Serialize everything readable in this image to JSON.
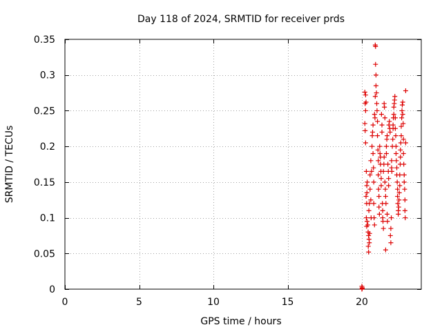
{
  "chart_data": {
    "type": "scatter",
    "title": "Day 118 of 2024, SRMTID for receiver prds",
    "xlabel": "GPS time / hours",
    "ylabel": "SRMTID / TECUs",
    "xlim": [
      0,
      24
    ],
    "ylim": [
      0,
      0.35
    ],
    "x_ticks": [
      0,
      5,
      10,
      15,
      20
    ],
    "x_tick_labels": [
      "0",
      "5",
      "10",
      "15",
      "20"
    ],
    "y_ticks": [
      0,
      0.05,
      0.1,
      0.15,
      0.2,
      0.25,
      0.3,
      0.35
    ],
    "y_tick_labels": [
      "0",
      "0.05",
      "0.1",
      "0.15",
      "0.2",
      "0.25",
      "0.3",
      "0.35"
    ],
    "grid": true,
    "marker": "+",
    "marker_color": "#dd0000",
    "series": [
      {
        "name": "prds",
        "x_range_hours": [
          20.0,
          22.95
        ],
        "y_range": [
          0.0,
          0.342
        ],
        "points": [
          [
            20.0,
            0.0
          ],
          [
            20.02,
            0.002
          ],
          [
            20.0,
            0.004
          ],
          [
            20.02,
            0.001
          ],
          [
            20.2,
            0.276
          ],
          [
            20.22,
            0.26
          ],
          [
            20.25,
            0.25
          ],
          [
            20.25,
            0.272
          ],
          [
            20.28,
            0.262
          ],
          [
            20.2,
            0.232
          ],
          [
            20.22,
            0.222
          ],
          [
            20.25,
            0.205
          ],
          [
            20.3,
            0.165
          ],
          [
            20.32,
            0.12
          ],
          [
            20.28,
            0.13
          ],
          [
            20.3,
            0.1
          ],
          [
            20.32,
            0.088
          ],
          [
            20.35,
            0.095
          ],
          [
            20.33,
            0.145
          ],
          [
            20.34,
            0.135
          ],
          [
            20.36,
            0.15
          ],
          [
            20.4,
            0.09
          ],
          [
            20.42,
            0.08
          ],
          [
            20.45,
            0.075
          ],
          [
            20.43,
            0.06
          ],
          [
            20.45,
            0.052
          ],
          [
            20.48,
            0.07
          ],
          [
            20.5,
            0.065
          ],
          [
            20.52,
            0.078
          ],
          [
            20.47,
            0.11
          ],
          [
            20.5,
            0.12
          ],
          [
            20.55,
            0.14
          ],
          [
            20.55,
            0.16
          ],
          [
            20.6,
            0.18
          ],
          [
            20.6,
            0.125
          ],
          [
            20.62,
            0.1
          ],
          [
            20.65,
            0.165
          ],
          [
            20.68,
            0.2
          ],
          [
            20.7,
            0.215
          ],
          [
            20.72,
            0.22
          ],
          [
            20.75,
            0.23
          ],
          [
            20.75,
            0.19
          ],
          [
            20.78,
            0.17
          ],
          [
            20.8,
            0.15
          ],
          [
            20.8,
            0.12
          ],
          [
            20.82,
            0.1
          ],
          [
            20.85,
            0.09
          ],
          [
            20.85,
            0.245
          ],
          [
            20.88,
            0.24
          ],
          [
            20.9,
            0.342
          ],
          [
            20.92,
            0.34
          ],
          [
            20.92,
            0.315
          ],
          [
            20.95,
            0.3
          ],
          [
            20.95,
            0.285
          ],
          [
            20.98,
            0.275
          ],
          [
            20.9,
            0.27
          ],
          [
            21.0,
            0.26
          ],
          [
            21.02,
            0.25
          ],
          [
            21.05,
            0.235
          ],
          [
            21.05,
            0.215
          ],
          [
            21.08,
            0.195
          ],
          [
            21.1,
            0.18
          ],
          [
            21.1,
            0.16
          ],
          [
            21.12,
            0.14
          ],
          [
            21.15,
            0.13
          ],
          [
            21.15,
            0.115
          ],
          [
            21.18,
            0.105
          ],
          [
            21.2,
            0.2
          ],
          [
            21.22,
            0.19
          ],
          [
            21.25,
            0.185
          ],
          [
            21.25,
            0.175
          ],
          [
            21.28,
            0.165
          ],
          [
            21.3,
            0.155
          ],
          [
            21.3,
            0.145
          ],
          [
            21.32,
            0.245
          ],
          [
            21.35,
            0.23
          ],
          [
            21.35,
            0.22
          ],
          [
            21.38,
            0.12
          ],
          [
            21.4,
            0.11
          ],
          [
            21.4,
            0.1
          ],
          [
            21.42,
            0.095
          ],
          [
            21.45,
            0.085
          ],
          [
            21.45,
            0.165
          ],
          [
            21.48,
            0.175
          ],
          [
            21.5,
            0.185
          ],
          [
            21.5,
            0.26
          ],
          [
            21.52,
            0.255
          ],
          [
            21.55,
            0.24
          ],
          [
            21.55,
            0.15
          ],
          [
            21.58,
            0.14
          ],
          [
            21.6,
            0.13
          ],
          [
            21.6,
            0.055
          ],
          [
            21.62,
            0.12
          ],
          [
            21.65,
            0.19
          ],
          [
            21.65,
            0.2
          ],
          [
            21.68,
            0.21
          ],
          [
            21.7,
            0.215
          ],
          [
            21.7,
            0.105
          ],
          [
            21.72,
            0.095
          ],
          [
            21.75,
            0.175
          ],
          [
            21.78,
            0.165
          ],
          [
            21.8,
            0.155
          ],
          [
            21.8,
            0.145
          ],
          [
            21.82,
            0.23
          ],
          [
            21.85,
            0.235
          ],
          [
            21.88,
            0.225
          ],
          [
            21.9,
            0.22
          ],
          [
            21.92,
            0.075
          ],
          [
            21.95,
            0.065
          ],
          [
            21.95,
            0.085
          ],
          [
            21.98,
            0.1
          ],
          [
            22.0,
            0.18
          ],
          [
            22.0,
            0.17
          ],
          [
            22.02,
            0.165
          ],
          [
            22.05,
            0.2
          ],
          [
            22.08,
            0.21
          ],
          [
            22.1,
            0.225
          ],
          [
            22.1,
            0.23
          ],
          [
            22.12,
            0.24
          ],
          [
            22.15,
            0.245
          ],
          [
            22.15,
            0.255
          ],
          [
            22.18,
            0.26
          ],
          [
            22.2,
            0.265
          ],
          [
            22.22,
            0.27
          ],
          [
            22.25,
            0.24
          ],
          [
            22.25,
            0.225
          ],
          [
            22.28,
            0.215
          ],
          [
            22.3,
            0.2
          ],
          [
            22.3,
            0.19
          ],
          [
            22.32,
            0.18
          ],
          [
            22.35,
            0.17
          ],
          [
            22.35,
            0.16
          ],
          [
            22.38,
            0.15
          ],
          [
            22.4,
            0.14
          ],
          [
            22.4,
            0.13
          ],
          [
            22.42,
            0.12
          ],
          [
            22.45,
            0.11
          ],
          [
            22.45,
            0.105
          ],
          [
            22.48,
            0.115
          ],
          [
            22.5,
            0.125
          ],
          [
            22.52,
            0.135
          ],
          [
            22.55,
            0.145
          ],
          [
            22.55,
            0.16
          ],
          [
            22.58,
            0.175
          ],
          [
            22.6,
            0.185
          ],
          [
            22.6,
            0.195
          ],
          [
            22.62,
            0.205
          ],
          [
            22.65,
            0.215
          ],
          [
            22.65,
            0.228
          ],
          [
            22.68,
            0.24
          ],
          [
            22.7,
            0.25
          ],
          [
            22.72,
            0.258
          ],
          [
            22.75,
            0.262
          ],
          [
            22.75,
            0.245
          ],
          [
            22.78,
            0.232
          ],
          [
            22.8,
            0.21
          ],
          [
            22.8,
            0.19
          ],
          [
            22.82,
            0.175
          ],
          [
            22.85,
            0.16
          ],
          [
            22.85,
            0.15
          ],
          [
            22.88,
            0.14
          ],
          [
            22.9,
            0.125
          ],
          [
            22.9,
            0.11
          ],
          [
            22.92,
            0.1
          ],
          [
            22.95,
            0.278
          ],
          [
            22.95,
            0.205
          ]
        ]
      }
    ]
  }
}
